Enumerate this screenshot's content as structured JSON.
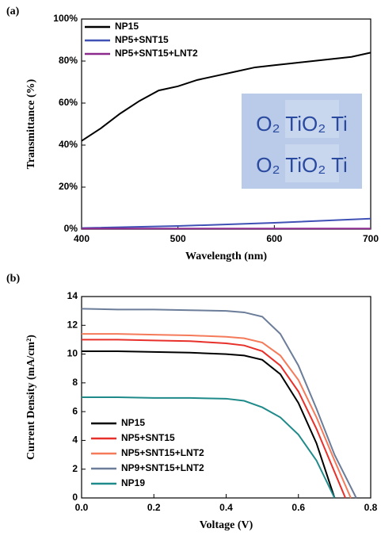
{
  "chart_data": [
    {
      "type": "line",
      "label": "(a)",
      "x_label": "Wavelength (nm)",
      "y_label": "Transmittance (%)",
      "xlim": [
        400,
        700
      ],
      "xticks": [
        400,
        500,
        600,
        700
      ],
      "ylim": [
        0,
        100
      ],
      "yticks": [
        {
          "value": 0,
          "label": "0%"
        },
        {
          "value": 20,
          "label": "20%"
        },
        {
          "value": 40,
          "label": "40%"
        },
        {
          "value": 60,
          "label": "60%"
        },
        {
          "value": 80,
          "label": "80%"
        },
        {
          "value": 100,
          "label": "100%"
        }
      ],
      "legend": "upper left",
      "inset_text": [
        "O₂ TiO₂ Ti",
        "O₂ TiO₂ Ti"
      ],
      "series": [
        {
          "name": "NP15",
          "color": "#000000",
          "x": [
            400,
            420,
            440,
            460,
            480,
            500,
            520,
            540,
            560,
            580,
            600,
            620,
            640,
            660,
            680,
            700
          ],
          "values": [
            42,
            48,
            55,
            61,
            66,
            68,
            71,
            73,
            75,
            77,
            78,
            79,
            80,
            81,
            82,
            84
          ]
        },
        {
          "name": "NP5+SNT15",
          "color": "#3f51b5",
          "x": [
            400,
            500,
            600,
            700
          ],
          "values": [
            0.5,
            1.5,
            3,
            5
          ]
        },
        {
          "name": "NP5+SNT15+LNT2",
          "color": "#8e2a8e",
          "x": [
            400,
            700
          ],
          "values": [
            0.3,
            0.3
          ]
        }
      ]
    },
    {
      "type": "line",
      "label": "(b)",
      "x_label": "Voltage (V)",
      "y_label": "Current Density (mA/cm²)",
      "xlim": [
        0,
        0.8
      ],
      "xticks": [
        {
          "value": 0,
          "label": "0.0"
        },
        0.2,
        0.4,
        0.6,
        0.8
      ],
      "ylim": [
        0,
        14
      ],
      "yticks": [
        0,
        2,
        4,
        6,
        8,
        10,
        12,
        14
      ],
      "legend": "lower left",
      "series": [
        {
          "name": "NP15",
          "color": "#000000",
          "x": [
            0,
            0.1,
            0.2,
            0.3,
            0.4,
            0.45,
            0.5,
            0.55,
            0.6,
            0.65,
            0.7
          ],
          "values": [
            10.2,
            10.2,
            10.15,
            10.1,
            10.0,
            9.9,
            9.6,
            8.6,
            6.6,
            3.8,
            0
          ]
        },
        {
          "name": "NP5+SNT15",
          "color": "#e8302a",
          "x": [
            0,
            0.1,
            0.2,
            0.3,
            0.4,
            0.45,
            0.5,
            0.55,
            0.6,
            0.65,
            0.7,
            0.73
          ],
          "values": [
            11.0,
            11.0,
            10.95,
            10.9,
            10.75,
            10.6,
            10.2,
            9.2,
            7.4,
            4.8,
            1.8,
            0
          ]
        },
        {
          "name": "NP5+SNT15+LNT2",
          "color": "#f47a5a",
          "x": [
            0,
            0.1,
            0.2,
            0.3,
            0.4,
            0.45,
            0.5,
            0.55,
            0.6,
            0.65,
            0.7,
            0.745
          ],
          "values": [
            11.4,
            11.4,
            11.35,
            11.3,
            11.2,
            11.1,
            10.8,
            9.9,
            8.2,
            5.6,
            2.6,
            0
          ]
        },
        {
          "name": "NP9+SNT15+LNT2",
          "color": "#6b7d99",
          "x": [
            0,
            0.1,
            0.2,
            0.3,
            0.4,
            0.45,
            0.5,
            0.55,
            0.6,
            0.65,
            0.7,
            0.76
          ],
          "values": [
            13.15,
            13.1,
            13.1,
            13.05,
            13.0,
            12.9,
            12.6,
            11.4,
            9.2,
            6.2,
            3.0,
            0
          ]
        },
        {
          "name": "NP19",
          "color": "#1f8a8a",
          "x": [
            0,
            0.1,
            0.2,
            0.3,
            0.4,
            0.45,
            0.5,
            0.55,
            0.6,
            0.65,
            0.7
          ],
          "values": [
            7.0,
            7.0,
            6.95,
            6.95,
            6.9,
            6.75,
            6.3,
            5.6,
            4.4,
            2.6,
            0
          ]
        }
      ]
    }
  ]
}
